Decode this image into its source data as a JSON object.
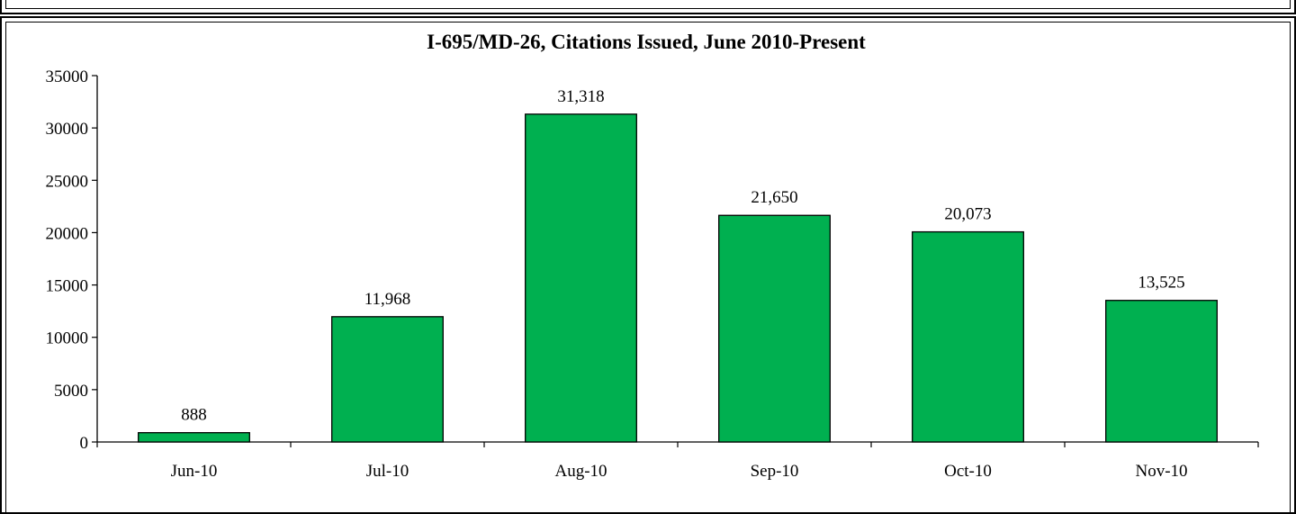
{
  "chart_data": {
    "type": "bar",
    "title": "I-695/MD-26, Citations Issued, June 2010-Present",
    "xlabel": "",
    "ylabel": "",
    "categories": [
      "Jun-10",
      "Jul-10",
      "Aug-10",
      "Sep-10",
      "Oct-10",
      "Nov-10"
    ],
    "values": [
      888,
      11968,
      31318,
      21650,
      20073,
      13525
    ],
    "data_labels": [
      "888",
      "11,968",
      "31,318",
      "21,650",
      "20,073",
      "13,525"
    ],
    "yticks": [
      0,
      5000,
      10000,
      15000,
      20000,
      25000,
      30000,
      35000
    ],
    "ylim": [
      0,
      35000
    ],
    "grid": false,
    "legend": "none",
    "bar_color": "#00B050"
  }
}
